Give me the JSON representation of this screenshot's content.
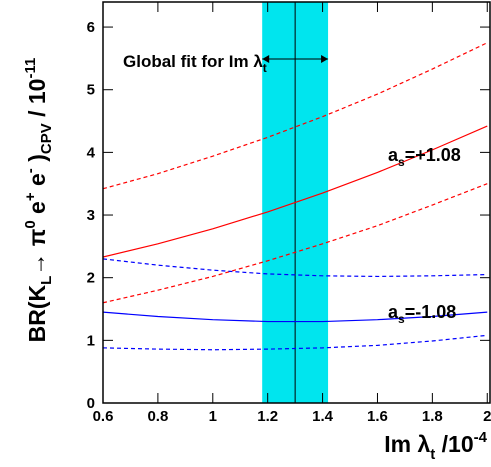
{
  "chart_data": {
    "type": "line",
    "x": [
      0.6,
      0.8,
      1.0,
      1.2,
      1.4,
      1.6,
      1.8,
      2.0
    ],
    "series": [
      {
        "color": "#ff0000",
        "dash": true,
        "values": [
          3.42,
          3.66,
          3.94,
          4.24,
          4.57,
          4.93,
          5.33,
          5.75
        ]
      },
      {
        "color": "#ff0000",
        "dash": false,
        "values": [
          2.33,
          2.54,
          2.78,
          3.05,
          3.35,
          3.68,
          4.04,
          4.42
        ]
      },
      {
        "color": "#ff0000",
        "dash": true,
        "values": [
          1.6,
          1.8,
          2.02,
          2.27,
          2.54,
          2.83,
          3.16,
          3.5
        ]
      },
      {
        "color": "#0000ff",
        "dash": true,
        "values": [
          2.3,
          2.2,
          2.12,
          2.06,
          2.03,
          2.02,
          2.03,
          2.05
        ]
      },
      {
        "color": "#0000ff",
        "dash": false,
        "values": [
          1.45,
          1.38,
          1.33,
          1.3,
          1.3,
          1.33,
          1.38,
          1.45
        ]
      },
      {
        "color": "#0000ff",
        "dash": true,
        "values": [
          0.88,
          0.86,
          0.85,
          0.86,
          0.88,
          0.92,
          0.99,
          1.08
        ]
      }
    ],
    "band": {
      "range": [
        1.18,
        1.42
      ],
      "center": 1.3,
      "color": "#00e5ee"
    },
    "xlim": [
      0.6,
      2.01
    ],
    "ylim": [
      0,
      6.4
    ],
    "xticks": [
      0.6,
      0.8,
      1,
      1.2,
      1.4,
      1.6,
      1.8,
      2
    ],
    "yticks": [
      0,
      1,
      2,
      3,
      4,
      5,
      6
    ],
    "x_label": [
      "Im λ",
      "t",
      " /10",
      "-4"
    ],
    "y_label": [
      "BR(K",
      "L",
      "→ π",
      "0",
      " e",
      "+",
      " e",
      "-",
      " )",
      "CPV",
      " / 10",
      "-11"
    ],
    "band_label": [
      "Global fit for Im λ",
      "t"
    ],
    "annotations": [
      [
        "a",
        "s",
        "=+1.08"
      ],
      [
        "a",
        "s",
        "=-1.08"
      ]
    ]
  }
}
